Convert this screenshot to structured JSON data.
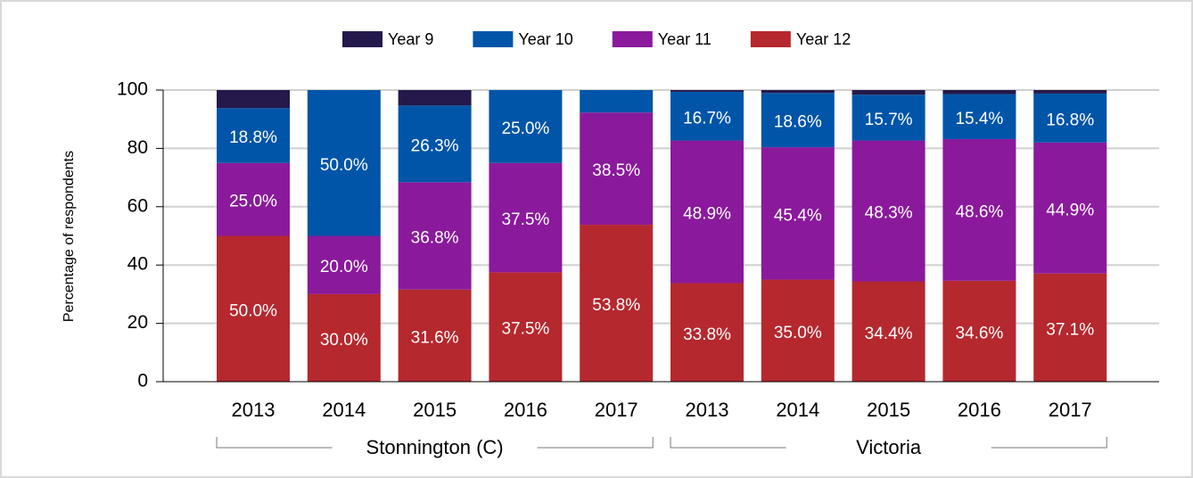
{
  "chart_data": {
    "type": "stacked_bar",
    "y_axis_label": "Percentage of respondents",
    "categories": [
      "2013",
      "2014",
      "2015",
      "2016",
      "2017",
      "2013",
      "2014",
      "2015",
      "2016",
      "2017"
    ],
    "group_labels": [
      "Stonnington (C)",
      "Victoria"
    ],
    "series": [
      {
        "name": "Year 12",
        "color": "#b5282e",
        "values": [
          50.0,
          30.0,
          31.6,
          37.5,
          53.8,
          33.8,
          35.0,
          34.4,
          34.6,
          37.1
        ],
        "value_labels": [
          "50.0%",
          "30.0%",
          "31.6%",
          "37.5%",
          "53.8%",
          "33.8%",
          "35.0%",
          "34.4%",
          "34.6%",
          "37.1%"
        ]
      },
      {
        "name": "Year 11",
        "color": "#8a1a9b",
        "values": [
          25.0,
          20.0,
          36.8,
          37.5,
          38.5,
          48.9,
          45.4,
          48.3,
          48.6,
          44.9
        ],
        "value_labels": [
          "25.0%",
          "20.0%",
          "36.8%",
          "37.5%",
          "38.5%",
          "48.9%",
          "45.4%",
          "48.3%",
          "48.6%",
          "44.9%"
        ]
      },
      {
        "name": "Year 10",
        "color": "#0055a8",
        "values": [
          18.8,
          50.0,
          26.3,
          25.0,
          7.7,
          16.7,
          18.6,
          15.7,
          15.4,
          16.8
        ],
        "value_labels": [
          "18.8%",
          "50.0%",
          "26.3%",
          "25.0%",
          null,
          "16.7%",
          "18.6%",
          "15.7%",
          "15.4%",
          "16.8%"
        ]
      },
      {
        "name": "Year 9",
        "color": "#24194a",
        "values": [
          6.2,
          0,
          5.3,
          0,
          0,
          0.6,
          1.0,
          1.6,
          1.4,
          1.2
        ]
      }
    ],
    "legend_order": [
      3,
      2,
      1,
      0
    ],
    "ylim": [
      0,
      100
    ],
    "yticks": [
      0,
      20,
      40,
      60,
      80,
      100
    ],
    "grid": true
  }
}
